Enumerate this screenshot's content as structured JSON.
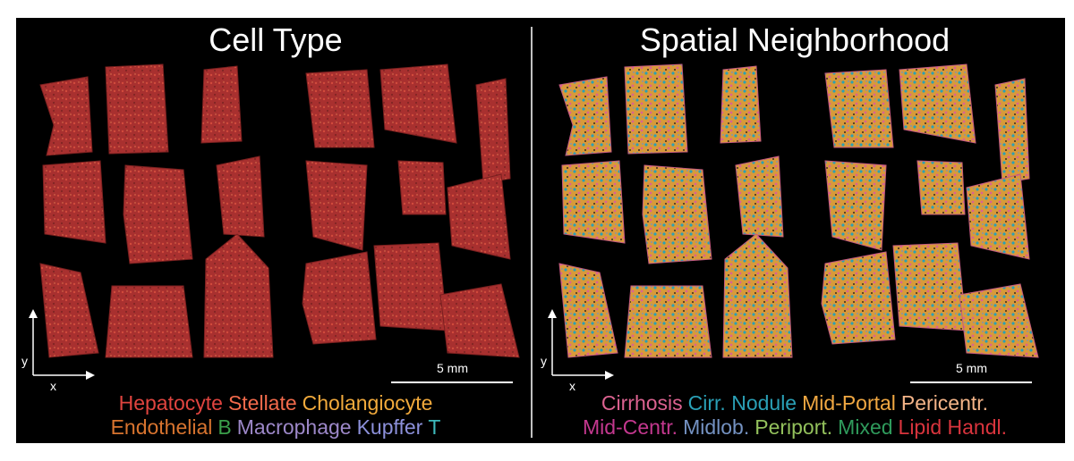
{
  "panels": [
    {
      "title": "Cell Type",
      "legend": [
        [
          {
            "label": "Hepatocyte",
            "color": "#e0443f"
          },
          {
            "label": "Stellate",
            "color": "#f26a4b"
          },
          {
            "label": "Cholangiocyte",
            "color": "#f2aa3c"
          }
        ],
        [
          {
            "label": "Endothelial",
            "color": "#d8742f"
          },
          {
            "label": "B",
            "color": "#3a9e4a"
          },
          {
            "label": "Macrophage",
            "color": "#9d88c9"
          },
          {
            "label": "Kupffer",
            "color": "#8c90da"
          },
          {
            "label": "T",
            "color": "#3db9bb"
          }
        ]
      ],
      "axis_x": "x",
      "axis_y": "y",
      "scale_bar": "5 mm"
    },
    {
      "title": "Spatial Neighborhood",
      "legend": [
        [
          {
            "label": "Cirrhosis",
            "color": "#dc6290"
          },
          {
            "label": "Cirr. Nodule",
            "color": "#2aa0b6"
          },
          {
            "label": "Mid-Portal",
            "color": "#f1a842"
          },
          {
            "label": "Pericentr.",
            "color": "#f4b488"
          }
        ],
        [
          {
            "label": "Mid-Centr.",
            "color": "#c4388f"
          },
          {
            "label": "Midlob.",
            "color": "#7492c2"
          },
          {
            "label": "Periport.",
            "color": "#93c15c"
          },
          {
            "label": "Mixed",
            "color": "#2f9b5c"
          },
          {
            "label": "Lipid Handl.",
            "color": "#d9343d"
          }
        ]
      ],
      "axis_x": "x",
      "axis_y": "y",
      "scale_bar": "5 mm"
    }
  ]
}
